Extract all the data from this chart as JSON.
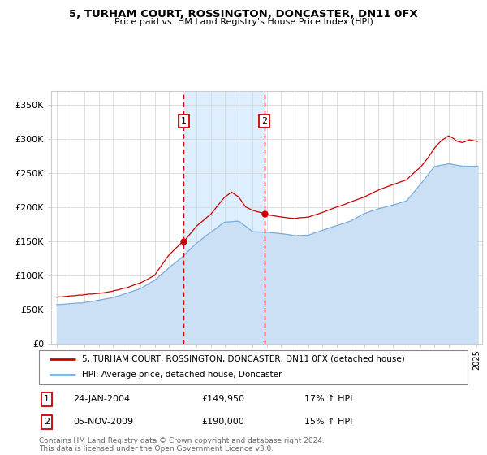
{
  "title": "5, TURHAM COURT, ROSSINGTON, DONCASTER, DN11 0FX",
  "subtitle": "Price paid vs. HM Land Registry's House Price Index (HPI)",
  "sale1_date": "24-JAN-2004",
  "sale1_price": 149950,
  "sale1_hpi": "17% ↑ HPI",
  "sale2_date": "05-NOV-2009",
  "sale2_price": 190000,
  "sale2_hpi": "15% ↑ HPI",
  "legend_label1": "5, TURHAM COURT, ROSSINGTON, DONCASTER, DN11 0FX (detached house)",
  "legend_label2": "HPI: Average price, detached house, Doncaster",
  "footer": "Contains HM Land Registry data © Crown copyright and database right 2024.\nThis data is licensed under the Open Government Licence v3.0.",
  "sale1_color": "#cc0000",
  "sale2_color": "#cc0000",
  "hpi_color": "#7aadd9",
  "hpi_fill_color": "#cce0f5",
  "span_color": "#ddeeff",
  "property_color": "#cc0000",
  "ylim_min": 0,
  "ylim_max": 370000,
  "yticks": [
    0,
    50000,
    100000,
    150000,
    200000,
    250000,
    300000,
    350000
  ],
  "sale1_x": 2004.07,
  "sale2_x": 2009.84,
  "xmin": 1994.6,
  "xmax": 2025.4
}
